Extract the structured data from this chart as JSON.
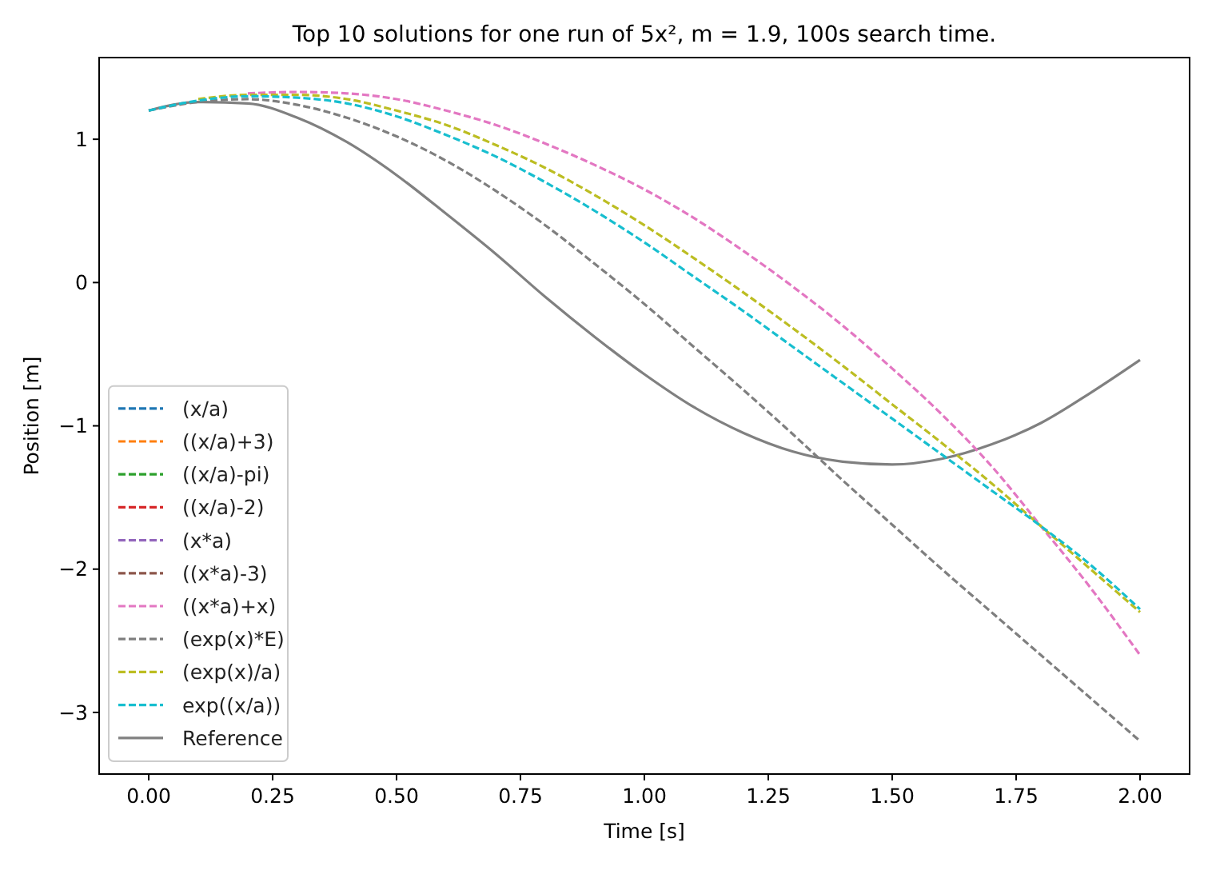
{
  "chart_data": {
    "type": "line",
    "title": "Top 10 solutions for one run of 5x², m = 1.9, 100s search time.",
    "xlabel": "Time [s]",
    "ylabel": "Position [m]",
    "x": [
      0,
      0.1,
      0.2,
      0.3,
      0.4,
      0.5,
      0.6,
      0.7,
      0.8,
      0.9,
      1.0,
      1.1,
      1.2,
      1.3,
      1.4,
      1.5,
      1.6,
      1.7,
      1.8,
      1.9,
      2.0
    ],
    "xlim": [
      -0.1,
      2.1
    ],
    "xticks": [
      {
        "value": 0,
        "label": "0.00"
      },
      {
        "value": 0.25,
        "label": "0.25"
      },
      {
        "value": 0.5,
        "label": "0.50"
      },
      {
        "value": 0.75,
        "label": "0.75"
      },
      {
        "value": 1,
        "label": "1.00"
      },
      {
        "value": 1.25,
        "label": "1.25"
      },
      {
        "value": 1.5,
        "label": "1.50"
      },
      {
        "value": 1.75,
        "label": "1.75"
      },
      {
        "value": 2,
        "label": "2.00"
      }
    ],
    "ylim": [
      -3.43,
      1.57
    ],
    "yticks": [
      {
        "value": -3,
        "label": "−3"
      },
      {
        "value": -2,
        "label": "−2"
      },
      {
        "value": -1,
        "label": "−1"
      },
      0,
      1
    ],
    "legend": "bottom left",
    "grid": false,
    "marker": "none",
    "series": [
      {
        "name": "(x/a)",
        "color": "#1f77b4",
        "line_style": "dashed",
        "values": [
          null,
          null,
          null,
          null,
          null,
          null,
          null,
          null,
          null,
          null,
          null,
          null,
          null,
          null,
          null,
          null,
          null,
          null,
          null,
          null,
          null
        ]
      },
      {
        "name": "((x/a)+3)",
        "color": "#ff7f0e",
        "line_style": "dashed",
        "values": [
          null,
          null,
          null,
          null,
          null,
          null,
          null,
          null,
          null,
          null,
          null,
          null,
          null,
          null,
          null,
          null,
          null,
          null,
          null,
          null,
          null
        ]
      },
      {
        "name": "((x/a)-pi)",
        "color": "#2ca02c",
        "line_style": "dashed",
        "values": [
          null,
          null,
          null,
          null,
          null,
          null,
          null,
          null,
          null,
          null,
          null,
          null,
          null,
          null,
          null,
          null,
          null,
          null,
          null,
          null,
          null
        ]
      },
      {
        "name": "((x/a)-2)",
        "color": "#d62728",
        "line_style": "dashed",
        "values": [
          null,
          null,
          null,
          null,
          null,
          null,
          null,
          null,
          null,
          null,
          null,
          null,
          null,
          null,
          null,
          null,
          null,
          null,
          null,
          null,
          null
        ]
      },
      {
        "name": "(x*a)",
        "color": "#9467bd",
        "line_style": "dashed",
        "values": [
          null,
          null,
          null,
          null,
          null,
          null,
          null,
          null,
          null,
          null,
          null,
          null,
          null,
          null,
          null,
          null,
          null,
          null,
          null,
          null,
          null
        ]
      },
      {
        "name": "((x*a)-3)",
        "color": "#8c564b",
        "line_style": "dashed",
        "values": [
          null,
          null,
          null,
          null,
          null,
          null,
          null,
          null,
          null,
          null,
          null,
          null,
          null,
          null,
          null,
          null,
          null,
          null,
          null,
          null,
          null
        ]
      },
      {
        "name": "((x*a)+x)",
        "color": "#e377c2",
        "line_style": "dashed",
        "values": [
          null,
          null,
          1.32,
          1.33,
          1.32,
          1.28,
          1.2,
          1.1,
          0.97,
          0.82,
          0.65,
          0.45,
          0.22,
          -0.03,
          -0.3,
          -0.6,
          -0.92,
          -1.28,
          -1.7,
          -2.13,
          -2.6
        ]
      },
      {
        "name": "(exp(x)*E)",
        "color": "#7f7f7f",
        "line_style": "dashed",
        "values": [
          1.2,
          1.26,
          1.28,
          1.24,
          1.15,
          1.02,
          0.85,
          0.64,
          0.4,
          0.13,
          -0.15,
          -0.45,
          -0.75,
          -1.06,
          -1.38,
          -1.69,
          -2.0,
          -2.3,
          -2.6,
          -2.9,
          -3.2
        ]
      },
      {
        "name": "(exp(x)/a)",
        "color": "#bcbd22",
        "line_style": "dashed",
        "values": [
          null,
          1.28,
          1.31,
          1.31,
          1.28,
          1.2,
          1.1,
          0.96,
          0.8,
          0.61,
          0.4,
          0.17,
          -0.07,
          -0.32,
          -0.58,
          -0.85,
          -1.12,
          -1.4,
          -1.7,
          -2.0,
          -2.3
        ]
      },
      {
        "name": "exp((x/a))",
        "color": "#17becf",
        "line_style": "dashed",
        "values": [
          1.2,
          1.27,
          1.3,
          1.29,
          1.25,
          1.16,
          1.03,
          0.88,
          0.7,
          0.5,
          0.28,
          0.04,
          -0.2,
          -0.45,
          -0.7,
          -0.95,
          -1.2,
          -1.45,
          -1.7,
          -1.97,
          -2.28
        ]
      },
      {
        "name": "Reference",
        "color": "#808080",
        "line_style": "solid",
        "values": [
          1.2,
          1.26,
          1.25,
          1.15,
          0.98,
          0.75,
          0.48,
          0.2,
          -0.1,
          -0.38,
          -0.64,
          -0.87,
          -1.05,
          -1.18,
          -1.25,
          -1.27,
          -1.23,
          -1.13,
          -0.98,
          -0.77,
          -0.54
        ]
      }
    ]
  }
}
